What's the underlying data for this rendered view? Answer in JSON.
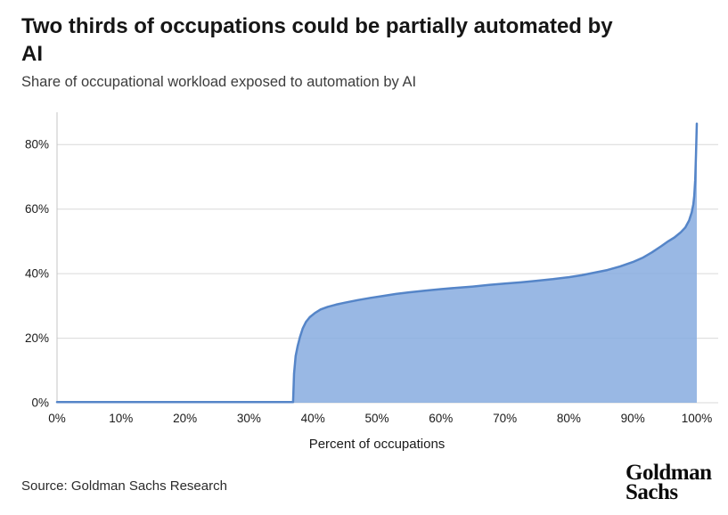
{
  "header": {
    "title_lines": [
      "Two thirds of occupations could be partially automated by",
      "AI"
    ],
    "subtitle": "Share of occupational workload exposed to automation by AI"
  },
  "footer": {
    "source": "Source: Goldman Sachs Research",
    "logo_lines": [
      "Goldman",
      "Sachs"
    ]
  },
  "chart_data": {
    "type": "area",
    "title": "Two thirds of occupations could be partially automated by AI",
    "subtitle": "Share of occupational workload exposed to automation by AI",
    "xlabel": "Percent of occupations",
    "ylabel": "",
    "xlim": [
      0,
      100
    ],
    "ylim": [
      0,
      90
    ],
    "grid": "horizontal",
    "legend": "none",
    "x_ticks": [
      {
        "value": 0,
        "label": "0%"
      },
      {
        "value": 10,
        "label": "10%"
      },
      {
        "value": 20,
        "label": "20%"
      },
      {
        "value": 30,
        "label": "30%"
      },
      {
        "value": 40,
        "label": "40%"
      },
      {
        "value": 50,
        "label": "50%"
      },
      {
        "value": 60,
        "label": "60%"
      },
      {
        "value": 70,
        "label": "70%"
      },
      {
        "value": 80,
        "label": "80%"
      },
      {
        "value": 90,
        "label": "90%"
      },
      {
        "value": 100,
        "label": "100%"
      }
    ],
    "y_ticks": [
      {
        "value": 0,
        "label": "0%"
      },
      {
        "value": 20,
        "label": "20%"
      },
      {
        "value": 40,
        "label": "40%"
      },
      {
        "value": 60,
        "label": "60%"
      },
      {
        "value": 80,
        "label": "80%"
      }
    ],
    "colors": {
      "area_fill": "#87acdf",
      "area_fill_opacity": 0.85,
      "area_line": "#5585c8",
      "grid": "#d9d9d9",
      "axis": "#c6c6c6",
      "text": "#1a1a1a"
    },
    "series": [
      {
        "name": "Share of occupational workload exposed to automation by AI",
        "points": [
          [
            0,
            0.2
          ],
          [
            36.9,
            0.2
          ],
          [
            37.05,
            9
          ],
          [
            37.3,
            14.5
          ],
          [
            37.6,
            17.5
          ],
          [
            38,
            20.5
          ],
          [
            38.4,
            23
          ],
          [
            38.9,
            25
          ],
          [
            39.5,
            26.5
          ],
          [
            40.3,
            27.8
          ],
          [
            41.2,
            28.9
          ],
          [
            42.3,
            29.7
          ],
          [
            43.6,
            30.4
          ],
          [
            45,
            31
          ],
          [
            47,
            31.8
          ],
          [
            49,
            32.5
          ],
          [
            51,
            33.1
          ],
          [
            53,
            33.7
          ],
          [
            55,
            34.2
          ],
          [
            57.5,
            34.7
          ],
          [
            60,
            35.2
          ],
          [
            62.5,
            35.6
          ],
          [
            65,
            36
          ],
          [
            67.5,
            36.5
          ],
          [
            70,
            36.9
          ],
          [
            72.5,
            37.3
          ],
          [
            75,
            37.8
          ],
          [
            77.5,
            38.3
          ],
          [
            80,
            38.9
          ],
          [
            82,
            39.5
          ],
          [
            84,
            40.3
          ],
          [
            86,
            41.1
          ],
          [
            88,
            42.2
          ],
          [
            90,
            43.6
          ],
          [
            91.5,
            44.9
          ],
          [
            93,
            46.6
          ],
          [
            94.5,
            48.6
          ],
          [
            95.5,
            50
          ],
          [
            96.5,
            51.2
          ],
          [
            97.5,
            52.8
          ],
          [
            98.2,
            54.3
          ],
          [
            98.8,
            56.5
          ],
          [
            99.2,
            59
          ],
          [
            99.45,
            61.5
          ],
          [
            99.6,
            64
          ],
          [
            99.75,
            69
          ],
          [
            99.88,
            77
          ],
          [
            100,
            86.5
          ]
        ]
      }
    ]
  }
}
